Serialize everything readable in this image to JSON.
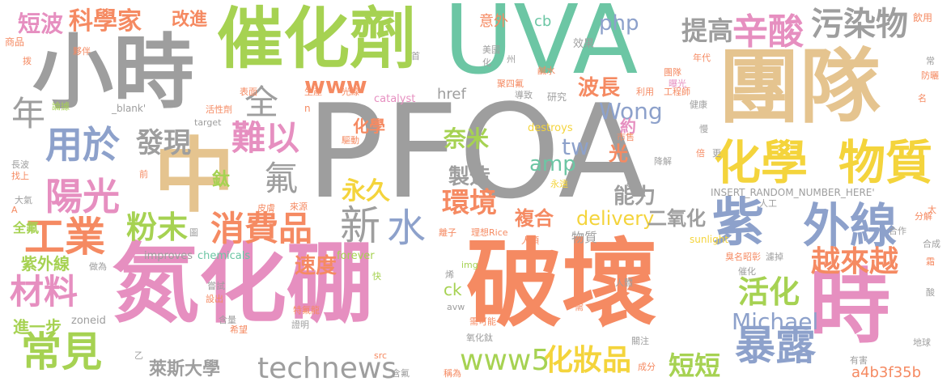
{
  "palette": {
    "gray": "#9e9e9e",
    "pink": "#e68fc0",
    "orange": "#f58a62",
    "green": "#a6d252",
    "teal": "#6cc6a4",
    "blue": "#8da1cb",
    "tan": "#e5c48f",
    "yellow": "#f4d43c"
  },
  "words": [
    {
      "text": "PFOA",
      "color": "gray"
    },
    {
      "text": "破壞",
      "color": "orange"
    },
    {
      "text": "氮化硼",
      "color": "pink"
    },
    {
      "text": "UVA",
      "color": "teal"
    },
    {
      "text": "團隊",
      "color": "tan"
    },
    {
      "text": "小時",
      "color": "gray"
    },
    {
      "text": "催化劑",
      "color": "green"
    },
    {
      "text": "中",
      "color": "tan"
    },
    {
      "text": "時",
      "color": "pink"
    },
    {
      "text": "紫",
      "color": "blue"
    },
    {
      "text": "外線",
      "color": "blue"
    },
    {
      "text": "化學",
      "color": "yellow"
    },
    {
      "text": "物質",
      "color": "yellow"
    },
    {
      "text": "辛酸",
      "color": "pink"
    },
    {
      "text": "科學家",
      "color": "orange"
    },
    {
      "text": "污染物",
      "color": "gray"
    },
    {
      "text": "提高",
      "color": "gray"
    },
    {
      "text": "短波",
      "color": "pink"
    },
    {
      "text": "改進",
      "color": "orange"
    },
    {
      "text": "用於",
      "color": "blue"
    },
    {
      "text": "發現",
      "color": "gray"
    },
    {
      "text": "陽光",
      "color": "pink"
    },
    {
      "text": "難以",
      "color": "pink"
    },
    {
      "text": "全",
      "color": "gray"
    },
    {
      "text": "年",
      "color": "gray"
    },
    {
      "text": "氟",
      "color": "gray"
    },
    {
      "text": "新",
      "color": "gray"
    },
    {
      "text": "水",
      "color": "blue"
    },
    {
      "text": "工業",
      "color": "orange"
    },
    {
      "text": "粉末",
      "color": "green"
    },
    {
      "text": "消費品",
      "color": "orange"
    },
    {
      "text": "材料",
      "color": "pink"
    },
    {
      "text": "常見",
      "color": "green"
    },
    {
      "text": "technews",
      "color": "gray"
    },
    {
      "text": "萊斯大學",
      "color": "gray"
    },
    {
      "text": "www5",
      "color": "green"
    },
    {
      "text": "化妝品",
      "color": "yellow"
    },
    {
      "text": "短短",
      "color": "green"
    },
    {
      "text": "暴露",
      "color": "blue"
    },
    {
      "text": "越來越",
      "color": "orange"
    },
    {
      "text": "活化",
      "color": "green"
    },
    {
      "text": "Michael",
      "color": "blue"
    },
    {
      "text": "環境",
      "color": "orange"
    },
    {
      "text": "www",
      "color": "orange"
    },
    {
      "text": "php",
      "color": "blue"
    },
    {
      "text": "波長",
      "color": "orange"
    },
    {
      "text": "Wong",
      "color": "blue"
    },
    {
      "text": "tw",
      "color": "blue"
    },
    {
      "text": "amp",
      "color": "teal"
    },
    {
      "text": "永久",
      "color": "yellow"
    },
    {
      "text": "製造",
      "color": "gray"
    },
    {
      "text": "奈米",
      "color": "green"
    },
    {
      "text": "能力",
      "color": "gray"
    },
    {
      "text": "delivery",
      "color": "yellow"
    },
    {
      "text": "二氧化",
      "color": "gray"
    },
    {
      "text": "複合",
      "color": "orange"
    },
    {
      "text": "速度",
      "color": "orange"
    },
    {
      "text": "化學",
      "color": "orange"
    },
    {
      "text": "光",
      "color": "orange"
    },
    {
      "text": "約",
      "color": "pink"
    },
    {
      "text": "鈦",
      "color": "green"
    },
    {
      "text": "cb",
      "color": "teal"
    },
    {
      "text": "意外",
      "color": "orange"
    },
    {
      "text": "href",
      "color": "gray"
    },
    {
      "text": "ck",
      "color": "green"
    },
    {
      "text": "物質",
      "color": "gray"
    },
    {
      "text": "紫外線",
      "color": "green"
    },
    {
      "text": "全氟",
      "color": "green"
    },
    {
      "text": "進一步",
      "color": "green"
    },
    {
      "text": "a4b3f35b",
      "color": "orange"
    },
    {
      "text": "zoneid",
      "color": "gray"
    },
    {
      "text": "sunlight",
      "color": "yellow"
    },
    {
      "text": "INSERT_RANDOM_NUMBER_HERE'",
      "color": "gray"
    },
    {
      "text": "catalyst",
      "color": "pink"
    },
    {
      "text": "destroys",
      "color": "yellow"
    },
    {
      "text": "improves",
      "color": "gray"
    },
    {
      "text": "chemicals",
      "color": "teal"
    },
    {
      "text": "forever",
      "color": "green"
    },
    {
      "text": "target",
      "color": "gray"
    },
    {
      "text": "_blank'",
      "color": "gray"
    },
    {
      "text": "效果",
      "color": "gray"
    },
    {
      "text": "研究",
      "color": "gray"
    },
    {
      "text": "飲用",
      "color": "orange"
    },
    {
      "text": "商品",
      "color": "orange"
    },
    {
      "text": "夥伴",
      "color": "orange"
    },
    {
      "text": "表面",
      "color": "orange"
    },
    {
      "text": "生產",
      "color": "orange"
    },
    {
      "text": "光線",
      "color": "orange"
    },
    {
      "text": "導致",
      "color": "gray"
    },
    {
      "text": "聚四氟",
      "color": "orange"
    },
    {
      "text": "活性劑",
      "color": "orange"
    },
    {
      "text": "工程師",
      "color": "orange"
    },
    {
      "text": "利用",
      "color": "orange"
    },
    {
      "text": "健康",
      "color": "gray"
    },
    {
      "text": "團隊",
      "color": "orange"
    },
    {
      "text": "曝光",
      "color": "pink"
    },
    {
      "text": "防曬",
      "color": "orange"
    },
    {
      "text": "年代",
      "color": "orange"
    },
    {
      "text": "論據",
      "color": "green"
    },
    {
      "text": "驅動",
      "color": "orange"
    },
    {
      "text": "市售",
      "color": "orange"
    },
    {
      "text": "永遠",
      "color": "yellow"
    },
    {
      "text": "降解",
      "color": "gray"
    },
    {
      "text": "人工",
      "color": "gray"
    },
    {
      "text": "合作",
      "color": "gray"
    },
    {
      "text": "合成",
      "color": "gray"
    },
    {
      "text": "分解",
      "color": "orange"
    },
    {
      "text": "臭名昭彰",
      "color": "orange"
    },
    {
      "text": "濾掉",
      "color": "gray"
    },
    {
      "text": "催化",
      "color": "gray"
    },
    {
      "text": "人體",
      "color": "gray"
    },
    {
      "text": "理想",
      "color": "orange"
    },
    {
      "text": "Rice",
      "color": "orange"
    },
    {
      "text": "人類",
      "color": "orange"
    },
    {
      "text": "離子",
      "color": "orange"
    },
    {
      "text": "皮膚",
      "color": "orange"
    },
    {
      "text": "來源",
      "color": "orange"
    },
    {
      "text": "做為",
      "color": "gray"
    },
    {
      "text": "嘗試",
      "color": "gray"
    },
    {
      "text": "設出",
      "color": "orange"
    },
    {
      "text": "特氟龍",
      "color": "orange"
    },
    {
      "text": "希望",
      "color": "orange"
    },
    {
      "text": "含量",
      "color": "gray"
    },
    {
      "text": "證明",
      "color": "gray"
    },
    {
      "text": "需可能",
      "color": "orange"
    },
    {
      "text": "氧化鈦",
      "color": "gray"
    },
    {
      "text": "成分",
      "color": "orange"
    },
    {
      "text": "含氟",
      "color": "gray"
    },
    {
      "text": "稱為",
      "color": "orange"
    },
    {
      "text": "有害",
      "color": "gray"
    },
    {
      "text": "地球",
      "color": "gray"
    },
    {
      "text": "關注",
      "color": "gray"
    },
    {
      "text": "大氣",
      "color": "gray"
    },
    {
      "text": "找上",
      "color": "orange"
    },
    {
      "text": "長波",
      "color": "gray"
    },
    {
      "text": "美國",
      "color": "gray"
    },
    {
      "text": "鹹水",
      "color": "orange"
    },
    {
      "text": "img",
      "color": "green"
    },
    {
      "text": "avw",
      "color": "gray"
    },
    {
      "text": "src",
      "color": "orange"
    },
    {
      "text": "首",
      "color": "gray"
    },
    {
      "text": "州",
      "color": "gray"
    },
    {
      "text": "化",
      "color": "gray"
    },
    {
      "text": "常",
      "color": "gray"
    },
    {
      "text": "名",
      "color": "orange"
    },
    {
      "text": "慢",
      "color": "gray"
    },
    {
      "text": "更",
      "color": "gray"
    },
    {
      "text": "倍",
      "color": "orange"
    },
    {
      "text": "太",
      "color": "orange"
    },
    {
      "text": "霜",
      "color": "orange"
    },
    {
      "text": "酸",
      "color": "gray"
    },
    {
      "text": "圖",
      "color": "gray"
    },
    {
      "text": "拨",
      "color": "orange"
    },
    {
      "text": "前",
      "color": "orange"
    },
    {
      "text": "烯",
      "color": "gray"
    },
    {
      "text": "快",
      "color": "green"
    },
    {
      "text": "需",
      "color": "orange"
    },
    {
      "text": "乙",
      "color": "gray"
    },
    {
      "text": "c",
      "color": "gray"
    },
    {
      "text": "n",
      "color": "orange"
    },
    {
      "text": "A",
      "color": "orange"
    }
  ]
}
